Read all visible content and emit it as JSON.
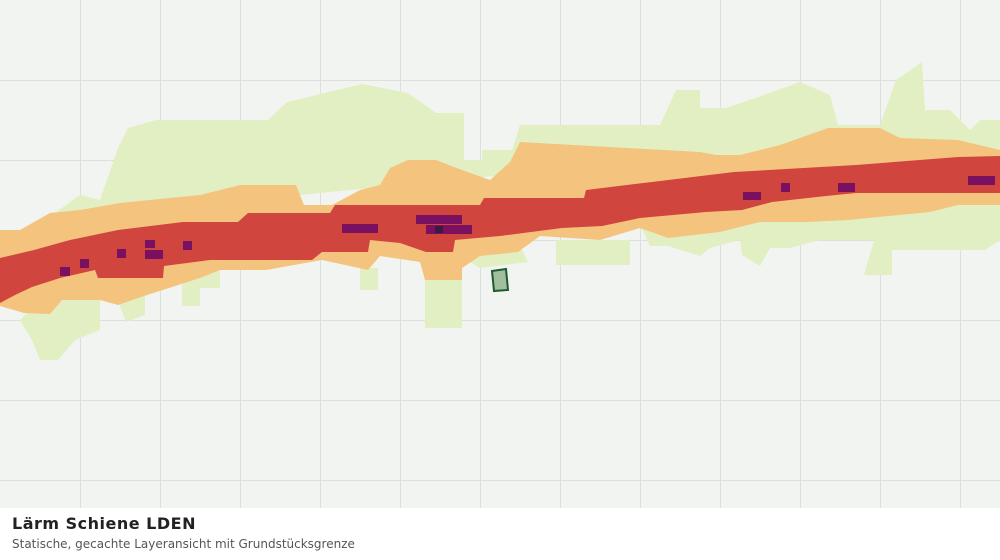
{
  "footer": {
    "title": "Lärm Schiene LDEN",
    "subtitle": "Statische, gecachte Layeransicht mit Grundstücksgrenze"
  }
}
